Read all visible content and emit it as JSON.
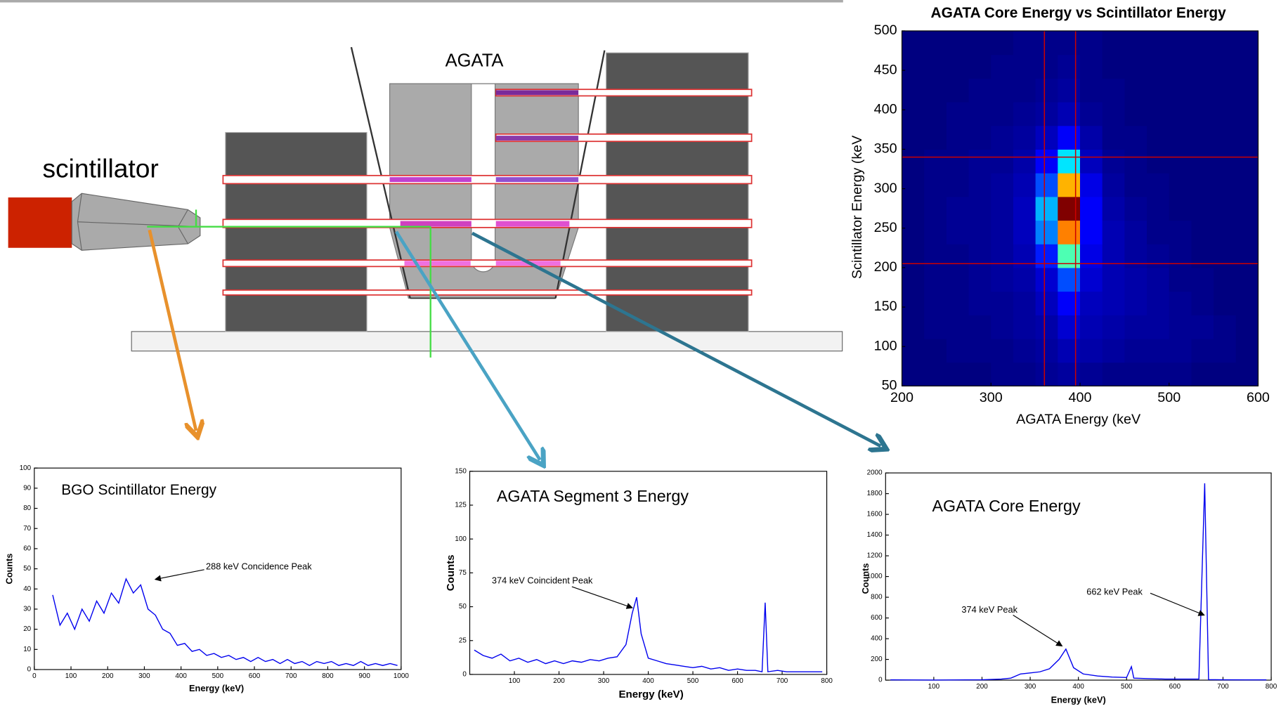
{
  "chart_data": [
    {
      "type": "heatmap",
      "title": "AGATA Core Energy vs Scintillator Energy",
      "x_label": "AGATA Energy (keV",
      "y_label": "Scintillator Energy (keV",
      "xlim": [
        200,
        600
      ],
      "xticks": [
        200,
        300,
        400,
        500,
        600
      ],
      "ylim": [
        50,
        500
      ],
      "yticks": [
        50,
        100,
        150,
        200,
        250,
        300,
        350,
        400,
        450,
        500
      ],
      "xbins": [
        200,
        225,
        250,
        275,
        300,
        325,
        350,
        375,
        400,
        425,
        450,
        475,
        500,
        525,
        550,
        575,
        600
      ],
      "ybins": [
        50,
        80,
        110,
        140,
        170,
        200,
        230,
        260,
        290,
        320,
        350,
        380,
        410,
        440,
        470,
        500
      ],
      "values": [
        [
          0,
          0,
          0,
          0,
          1,
          1,
          2,
          3,
          2,
          1,
          1,
          1,
          1,
          0,
          0,
          0
        ],
        [
          0,
          0,
          1,
          1,
          1,
          2,
          3,
          5,
          4,
          3,
          2,
          2,
          2,
          1,
          1,
          0
        ],
        [
          0,
          1,
          1,
          1,
          2,
          3,
          4,
          8,
          5,
          4,
          3,
          3,
          2,
          2,
          1,
          0
        ],
        [
          0,
          1,
          1,
          2,
          2,
          3,
          6,
          12,
          6,
          5,
          4,
          3,
          2,
          1,
          0,
          0
        ],
        [
          0,
          1,
          1,
          2,
          3,
          4,
          8,
          20,
          8,
          5,
          4,
          3,
          1,
          1,
          0,
          0
        ],
        [
          0,
          1,
          1,
          2,
          3,
          5,
          15,
          45,
          10,
          5,
          3,
          2,
          1,
          0,
          0,
          0
        ],
        [
          0,
          1,
          2,
          2,
          3,
          6,
          25,
          75,
          12,
          5,
          3,
          1,
          1,
          0,
          0,
          0
        ],
        [
          0,
          1,
          2,
          2,
          3,
          6,
          30,
          100,
          12,
          4,
          2,
          1,
          0,
          0,
          0,
          0
        ],
        [
          0,
          1,
          1,
          2,
          3,
          5,
          20,
          70,
          10,
          3,
          1,
          1,
          0,
          0,
          0,
          0
        ],
        [
          0,
          1,
          1,
          2,
          2,
          4,
          12,
          35,
          6,
          2,
          1,
          0,
          0,
          0,
          0,
          0
        ],
        [
          0,
          0,
          1,
          1,
          2,
          3,
          6,
          12,
          4,
          1,
          1,
          0,
          0,
          0,
          0,
          0
        ],
        [
          0,
          0,
          1,
          1,
          1,
          2,
          3,
          5,
          2,
          1,
          0,
          0,
          0,
          0,
          0,
          0
        ],
        [
          0,
          0,
          0,
          1,
          1,
          1,
          2,
          3,
          1,
          1,
          0,
          0,
          0,
          0,
          0,
          0
        ],
        [
          0,
          0,
          0,
          0,
          1,
          1,
          1,
          2,
          1,
          0,
          0,
          0,
          0,
          0,
          0,
          0
        ],
        [
          0,
          0,
          0,
          0,
          0,
          1,
          1,
          1,
          1,
          0,
          0,
          0,
          0,
          0,
          0,
          0
        ]
      ],
      "vlines": [
        360,
        395
      ],
      "hlines": [
        205,
        340
      ],
      "line_color": "#cc0000"
    },
    {
      "type": "line",
      "title": "BGO Scintillator Energy",
      "x_label": "Energy (keV)",
      "y_label": "Counts",
      "color": "#0000ee",
      "annotations": [
        "288 keV Concidence Peak"
      ],
      "xlim": [
        0,
        1000
      ],
      "xticks": [
        0,
        100,
        200,
        300,
        400,
        500,
        600,
        700,
        800,
        900,
        1000
      ],
      "ylim": [
        0,
        100
      ],
      "yticks": [
        0,
        10,
        20,
        30,
        40,
        50,
        60,
        70,
        80,
        90,
        100
      ],
      "x": [
        50,
        70,
        90,
        110,
        130,
        150,
        170,
        190,
        210,
        230,
        250,
        270,
        290,
        310,
        330,
        350,
        370,
        390,
        410,
        430,
        450,
        470,
        490,
        510,
        530,
        550,
        570,
        590,
        610,
        630,
        650,
        670,
        690,
        710,
        730,
        750,
        770,
        790,
        810,
        830,
        850,
        870,
        890,
        910,
        930,
        950,
        970,
        990
      ],
      "values": [
        37,
        22,
        28,
        20,
        30,
        24,
        34,
        28,
        38,
        33,
        45,
        38,
        42,
        30,
        27,
        20,
        18,
        12,
        13,
        9,
        10,
        7,
        8,
        6,
        7,
        5,
        6,
        4,
        6,
        4,
        5,
        3,
        5,
        3,
        4,
        2,
        4,
        3,
        4,
        2,
        3,
        2,
        4,
        2,
        3,
        2,
        3,
        2
      ]
    },
    {
      "type": "line",
      "title": "AGATA Segment 3 Energy",
      "x_label": "Energy (keV)",
      "y_label": "Counts",
      "color": "#0000ee",
      "annotations": [
        "374 keV Coincident Peak"
      ],
      "xlim": [
        0,
        800
      ],
      "xticks": [
        100,
        200,
        300,
        400,
        500,
        600,
        700,
        800
      ],
      "ylim": [
        0,
        150
      ],
      "yticks": [
        0,
        25,
        50,
        75,
        100,
        125,
        150
      ],
      "x": [
        10,
        30,
        50,
        70,
        90,
        110,
        130,
        150,
        170,
        190,
        210,
        230,
        250,
        270,
        290,
        310,
        330,
        350,
        364,
        374,
        384,
        400,
        420,
        440,
        460,
        480,
        500,
        520,
        540,
        560,
        580,
        600,
        620,
        640,
        655,
        662,
        668,
        690,
        710,
        730,
        750,
        770,
        790
      ],
      "values": [
        18,
        14,
        12,
        15,
        10,
        12,
        9,
        11,
        8,
        10,
        8,
        10,
        9,
        11,
        10,
        12,
        13,
        22,
        45,
        57,
        30,
        12,
        10,
        8,
        7,
        6,
        5,
        6,
        4,
        5,
        3,
        4,
        3,
        3,
        2,
        53,
        2,
        3,
        2,
        2,
        2,
        2,
        2
      ]
    },
    {
      "type": "line",
      "title": "AGATA Core Energy",
      "x_label": "Energy (keV)",
      "y_label": "Counts",
      "color": "#0000ee",
      "annotations": [
        "374 keV Peak",
        "662 keV Peak"
      ],
      "xlim": [
        0,
        800
      ],
      "xticks": [
        100,
        200,
        300,
        400,
        500,
        600,
        700,
        800
      ],
      "ylim": [
        0,
        2000
      ],
      "yticks": [
        0,
        200,
        400,
        600,
        800,
        1000,
        1200,
        1400,
        1600,
        1800,
        2000
      ],
      "x": [
        10,
        100,
        200,
        240,
        260,
        280,
        300,
        320,
        340,
        360,
        374,
        390,
        410,
        440,
        470,
        500,
        510,
        515,
        540,
        580,
        620,
        650,
        662,
        670,
        700,
        750,
        790
      ],
      "values": [
        2,
        1,
        3,
        10,
        20,
        60,
        70,
        80,
        110,
        200,
        300,
        120,
        60,
        40,
        30,
        25,
        130,
        20,
        15,
        10,
        10,
        10,
        1900,
        5,
        3,
        2,
        2
      ]
    }
  ],
  "diagram": {
    "scintillator_label": "scintillator",
    "detector_label": "AGATA"
  }
}
